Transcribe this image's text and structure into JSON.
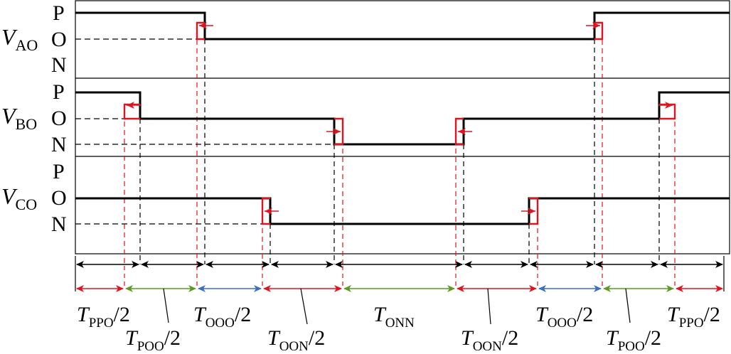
{
  "colors": {
    "signal": "#000000",
    "red": "#e0141e",
    "green": "#5a9b23",
    "blue": "#3c6fc0",
    "guide_black": "#000000",
    "guide_red": "#e0141e"
  },
  "level_labels": [
    "P",
    "O",
    "N"
  ],
  "rows": [
    {
      "name": "V",
      "sub": "AO"
    },
    {
      "name": "V",
      "sub": "BO"
    },
    {
      "name": "V",
      "sub": "CO"
    }
  ],
  "intervals": [
    {
      "name": "T",
      "sub": "PPO",
      "suffix": "/2",
      "color": "red"
    },
    {
      "name": "T",
      "sub": "POO",
      "suffix": "/2",
      "color": "green"
    },
    {
      "name": "T",
      "sub": "OOO",
      "suffix": "/2",
      "color": "blue"
    },
    {
      "name": "T",
      "sub": "OON",
      "suffix": "/2",
      "color": "red"
    },
    {
      "name": "T",
      "sub": "ONN",
      "suffix": "",
      "color": "green"
    },
    {
      "name": "T",
      "sub": "OON",
      "suffix": "/2",
      "color": "red"
    },
    {
      "name": "T",
      "sub": "OOO",
      "suffix": "/2",
      "color": "blue"
    },
    {
      "name": "T",
      "sub": "POO",
      "suffix": "/2",
      "color": "green"
    },
    {
      "name": "T",
      "sub": "PPO",
      "suffix": "/2",
      "color": "red"
    }
  ]
}
